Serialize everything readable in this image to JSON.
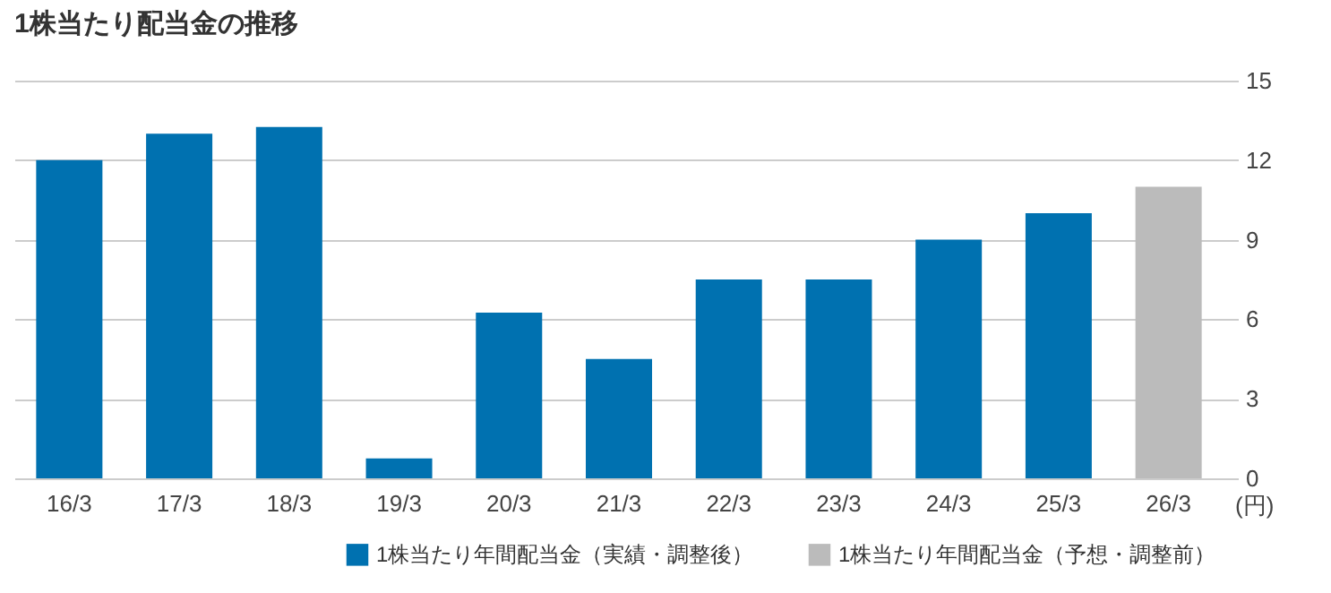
{
  "chart_data": {
    "type": "bar",
    "title": "1株当たり配当金の推移",
    "ylabel": "(円)",
    "categories": [
      "16/3",
      "17/3",
      "18/3",
      "19/3",
      "20/3",
      "21/3",
      "22/3",
      "23/3",
      "24/3",
      "25/3",
      "26/3"
    ],
    "series": [
      {
        "name": "1株当たり年間配当金（実績・調整後）",
        "color": "#0071b0",
        "values": [
          12,
          13,
          13.25,
          0.75,
          6.25,
          4.5,
          7.5,
          7.5,
          9,
          10,
          null
        ]
      },
      {
        "name": "1株当たり年間配当金（予想・調整前）",
        "color": "#bbbbbb",
        "values": [
          null,
          null,
          null,
          null,
          null,
          null,
          null,
          null,
          null,
          null,
          11
        ]
      }
    ],
    "ylim": [
      0,
      15
    ],
    "yticks": [
      0,
      3,
      6,
      9,
      12,
      15
    ],
    "grid": "y",
    "legend": "bottom"
  }
}
